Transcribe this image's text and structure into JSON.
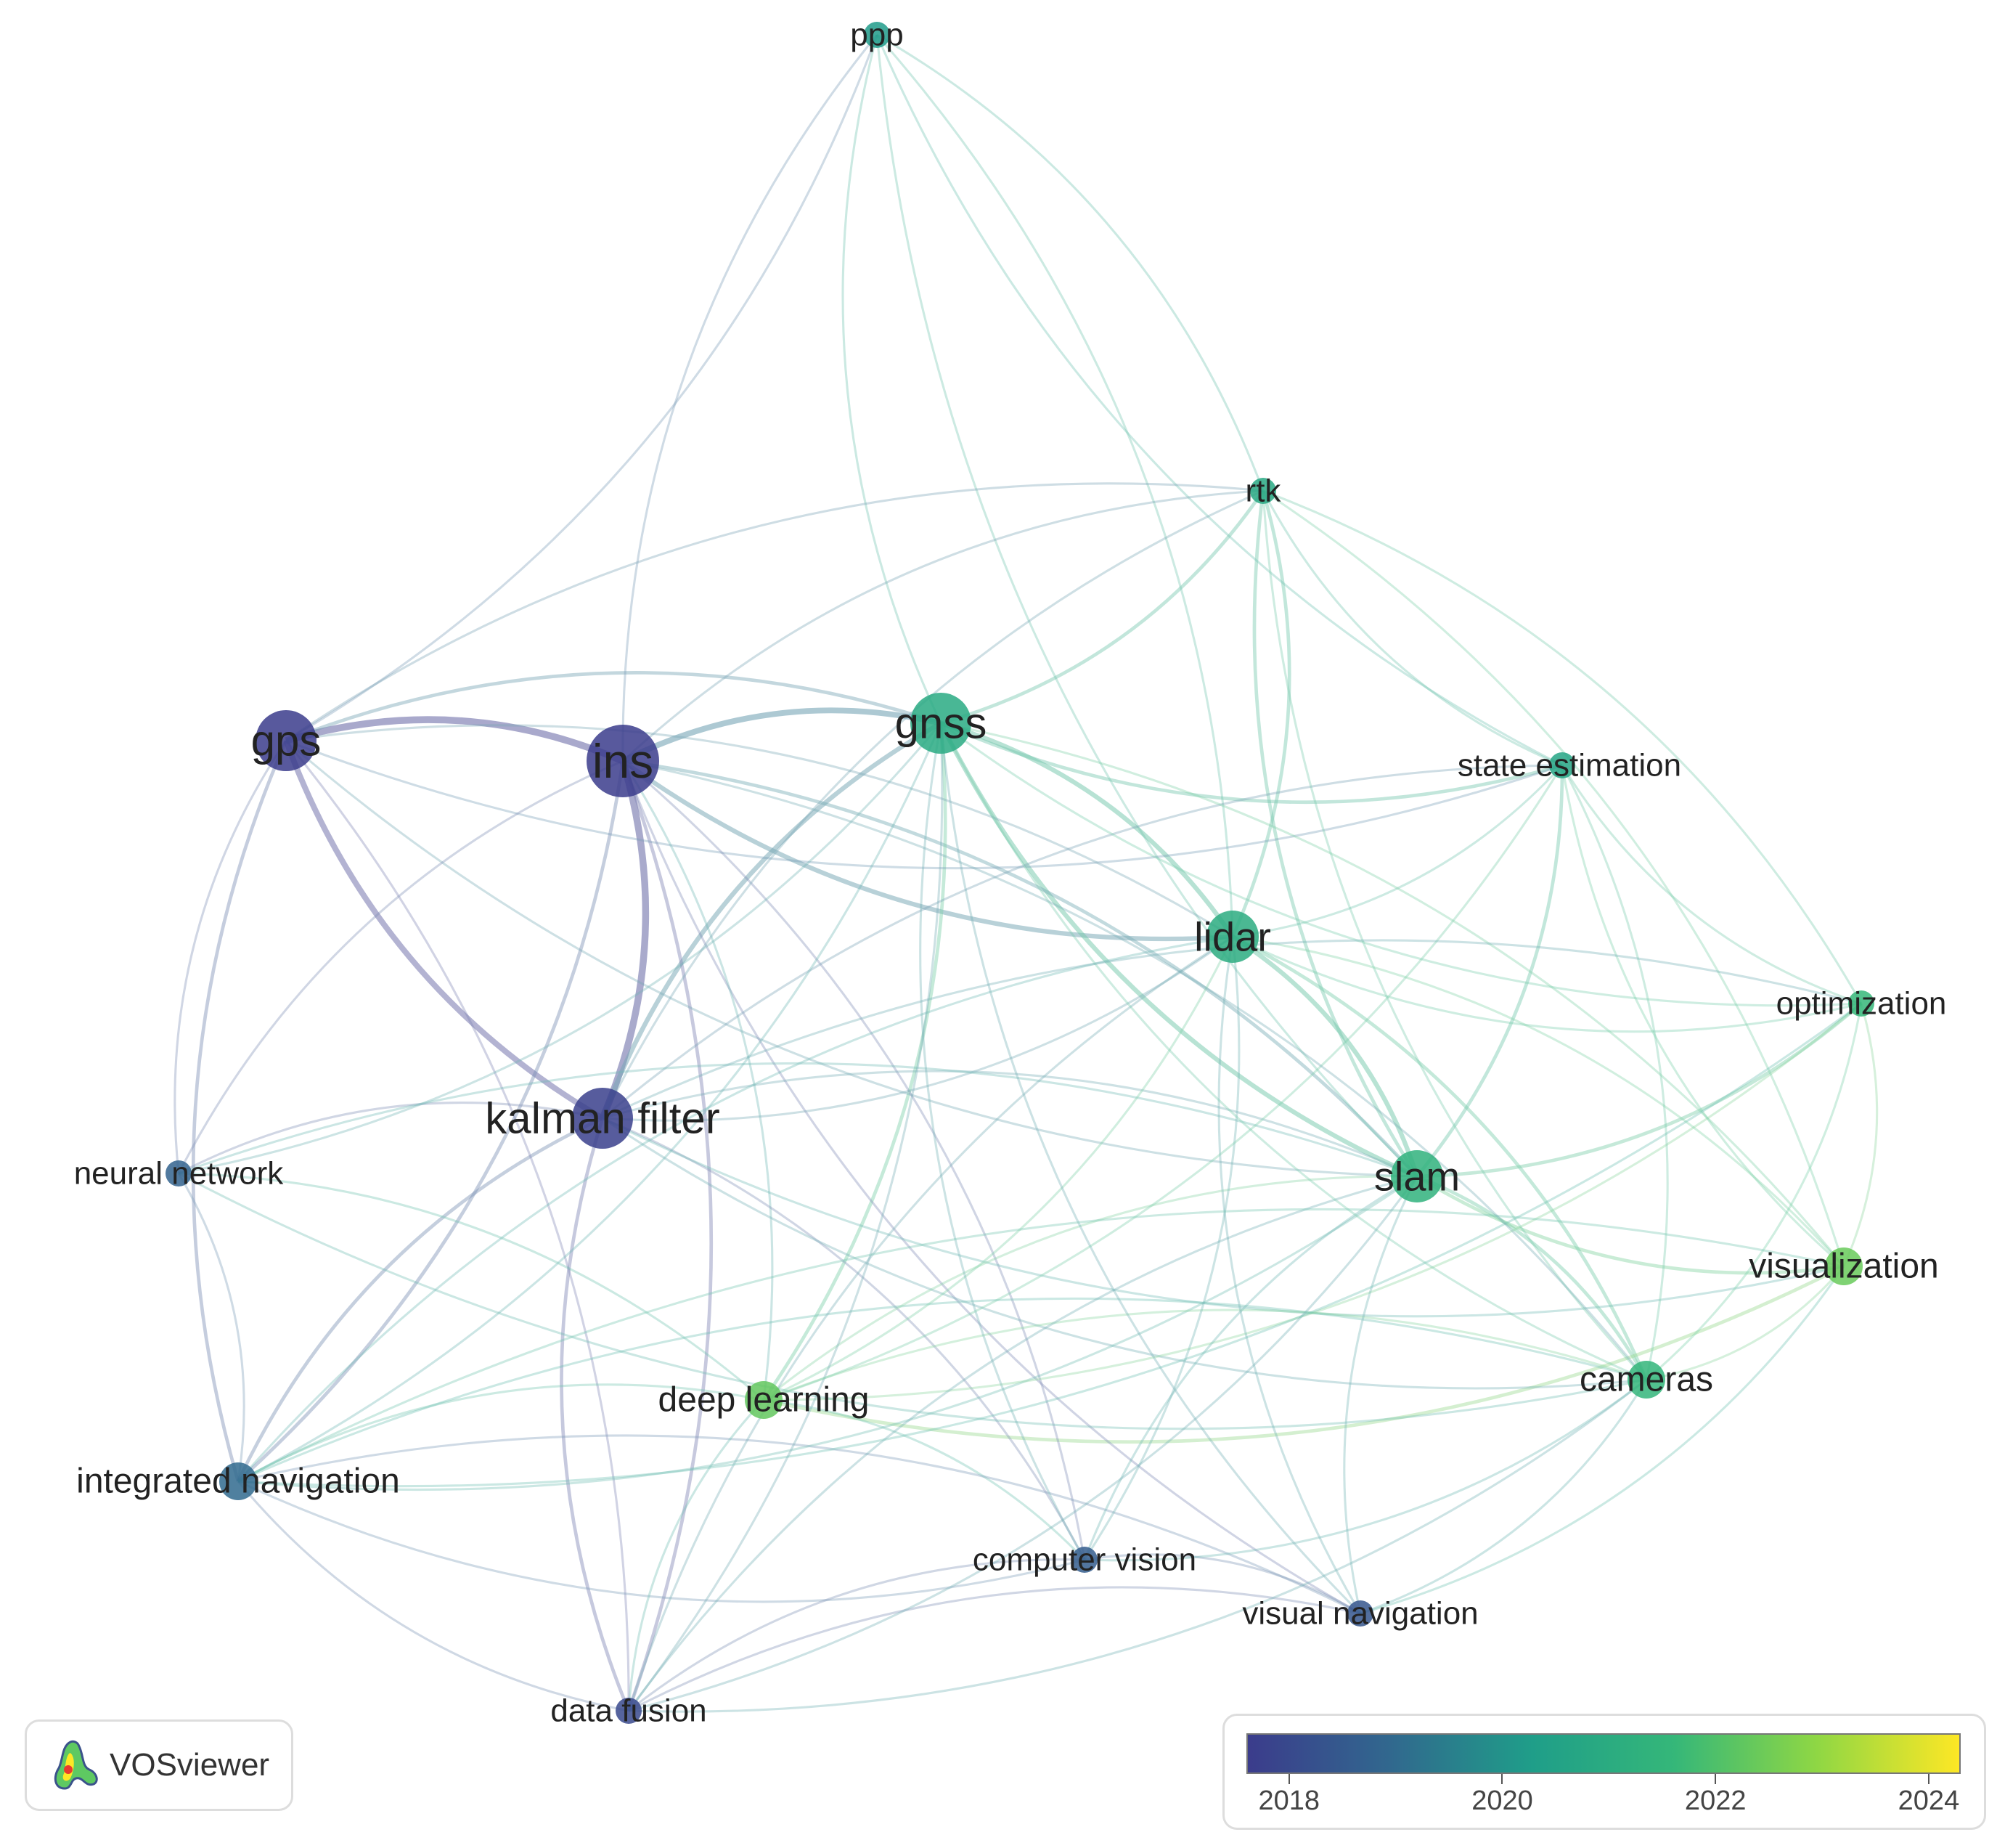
{
  "network": {
    "nodes": [
      {
        "id": "ppp",
        "label": "ppp",
        "weight": 1,
        "year": 2020.2
      },
      {
        "id": "rtk",
        "label": "rtk",
        "weight": 1,
        "year": 2020.8
      },
      {
        "id": "gps",
        "label": "gps",
        "weight": 4,
        "year": 2017.5
      },
      {
        "id": "ins",
        "label": "ins",
        "weight": 5,
        "year": 2017.6
      },
      {
        "id": "gnss",
        "label": "gnss",
        "weight": 4,
        "year": 2020.9
      },
      {
        "id": "state-estimation",
        "label": "state estimation",
        "weight": 1,
        "year": 2020.6
      },
      {
        "id": "lidar",
        "label": "lidar",
        "weight": 3,
        "year": 2021.0
      },
      {
        "id": "optimization",
        "label": "optimization",
        "weight": 1,
        "year": 2021.6
      },
      {
        "id": "neural-network",
        "label": "neural network",
        "weight": 1,
        "year": 2018.8
      },
      {
        "id": "kalman-filter",
        "label": "kalman filter",
        "weight": 4,
        "year": 2017.7
      },
      {
        "id": "slam",
        "label": "slam",
        "weight": 3,
        "year": 2021.3
      },
      {
        "id": "visualization",
        "label": "visualization",
        "weight": 2,
        "year": 2022.4
      },
      {
        "id": "deep-learning",
        "label": "deep learning",
        "weight": 2,
        "year": 2022.3
      },
      {
        "id": "cameras",
        "label": "cameras",
        "weight": 2,
        "year": 2021.5
      },
      {
        "id": "integrated-navigation",
        "label": "integrated navigation",
        "weight": 2,
        "year": 2019.0
      },
      {
        "id": "computer-vision",
        "label": "computer vision",
        "weight": 1,
        "year": 2018.6
      },
      {
        "id": "visual-navigation",
        "label": "visual navigation",
        "weight": 1,
        "year": 2018.4
      },
      {
        "id": "data-fusion",
        "label": "data fusion",
        "weight": 1,
        "year": 2018.0
      }
    ],
    "links": [
      [
        "ins",
        "gps",
        5
      ],
      [
        "ins",
        "kalman-filter",
        5
      ],
      [
        "gps",
        "kalman-filter",
        4
      ],
      [
        "ins",
        "gnss",
        4
      ],
      [
        "ins",
        "lidar",
        3
      ],
      [
        "gnss",
        "lidar",
        3
      ],
      [
        "gnss",
        "slam",
        3
      ],
      [
        "lidar",
        "slam",
        3
      ],
      [
        "gnss",
        "kalman-filter",
        3
      ],
      [
        "gps",
        "gnss",
        2
      ],
      [
        "gps",
        "integrated-navigation",
        2
      ],
      [
        "ins",
        "integrated-navigation",
        2
      ],
      [
        "kalman-filter",
        "integrated-navigation",
        2
      ],
      [
        "ins",
        "data-fusion",
        2
      ],
      [
        "kalman-filter",
        "data-fusion",
        2
      ],
      [
        "ins",
        "slam",
        2
      ],
      [
        "gnss",
        "rtk",
        2
      ],
      [
        "rtk",
        "lidar",
        2
      ],
      [
        "rtk",
        "slam",
        2
      ],
      [
        "slam",
        "cameras",
        2
      ],
      [
        "slam",
        "visualization",
        2
      ],
      [
        "lidar",
        "cameras",
        2
      ],
      [
        "gnss",
        "state-estimation",
        2
      ],
      [
        "state-estimation",
        "slam",
        2
      ],
      [
        "slam",
        "optimization",
        2
      ],
      [
        "gnss",
        "deep-learning",
        2
      ],
      [
        "deep-learning",
        "visualization",
        2
      ],
      [
        "deep-learning",
        "computer-vision",
        1
      ],
      [
        "cameras",
        "visualization",
        1
      ],
      [
        "optimization",
        "visualization",
        1
      ],
      [
        "gps",
        "ppp",
        1
      ],
      [
        "ins",
        "ppp",
        1
      ],
      [
        "ppp",
        "gnss",
        1
      ],
      [
        "ppp",
        "rtk",
        1
      ],
      [
        "ppp",
        "state-estimation",
        1
      ],
      [
        "ppp",
        "lidar",
        1
      ],
      [
        "ppp",
        "slam",
        1
      ],
      [
        "gps",
        "rtk",
        1
      ],
      [
        "gps",
        "state-estimation",
        1
      ],
      [
        "gps",
        "lidar",
        1
      ],
      [
        "gps",
        "neural-network",
        1
      ],
      [
        "gps",
        "data-fusion",
        1
      ],
      [
        "gps",
        "slam",
        1
      ],
      [
        "ins",
        "rtk",
        1
      ],
      [
        "ins",
        "neural-network",
        1
      ],
      [
        "ins",
        "computer-vision",
        1
      ],
      [
        "ins",
        "visual-navigation",
        1
      ],
      [
        "ins",
        "deep-learning",
        1
      ],
      [
        "kalman-filter",
        "neural-network",
        1
      ],
      [
        "kalman-filter",
        "slam",
        1
      ],
      [
        "kalman-filter",
        "lidar",
        1
      ],
      [
        "kalman-filter",
        "computer-vision",
        1
      ],
      [
        "kalman-filter",
        "cameras",
        1
      ],
      [
        "kalman-filter",
        "state-estimation",
        1
      ],
      [
        "kalman-filter",
        "visualization",
        1
      ],
      [
        "neural-network",
        "integrated-navigation",
        1
      ],
      [
        "neural-network",
        "gnss",
        1
      ],
      [
        "neural-network",
        "slam",
        1
      ],
      [
        "neural-network",
        "cameras",
        1
      ],
      [
        "neural-network",
        "deep-learning",
        1
      ],
      [
        "integrated-navigation",
        "gnss",
        1
      ],
      [
        "integrated-navigation",
        "lidar",
        1
      ],
      [
        "integrated-navigation",
        "data-fusion",
        1
      ],
      [
        "integrated-navigation",
        "deep-learning",
        1
      ],
      [
        "integrated-navigation",
        "computer-vision",
        1
      ],
      [
        "integrated-navigation",
        "visual-navigation",
        1
      ],
      [
        "integrated-navigation",
        "slam",
        1
      ],
      [
        "integrated-navigation",
        "cameras",
        1
      ],
      [
        "deep-learning",
        "data-fusion",
        1
      ],
      [
        "deep-learning",
        "slam",
        1
      ],
      [
        "deep-learning",
        "lidar",
        1
      ],
      [
        "deep-learning",
        "cameras",
        1
      ],
      [
        "deep-learning",
        "optimization",
        1
      ],
      [
        "computer-vision",
        "visual-navigation",
        1
      ],
      [
        "computer-vision",
        "cameras",
        1
      ],
      [
        "computer-vision",
        "slam",
        1
      ],
      [
        "computer-vision",
        "lidar",
        1
      ],
      [
        "computer-vision",
        "gnss",
        1
      ],
      [
        "computer-vision",
        "data-fusion",
        1
      ],
      [
        "visual-navigation",
        "slam",
        1
      ],
      [
        "visual-navigation",
        "cameras",
        1
      ],
      [
        "visual-navigation",
        "lidar",
        1
      ],
      [
        "visual-navigation",
        "data-fusion",
        1
      ],
      [
        "visual-navigation",
        "gnss",
        1
      ],
      [
        "data-fusion",
        "gnss",
        1
      ],
      [
        "data-fusion",
        "lidar",
        1
      ],
      [
        "data-fusion",
        "cameras",
        1
      ],
      [
        "data-fusion",
        "slam",
        1
      ],
      [
        "rtk",
        "state-estimation",
        1
      ],
      [
        "rtk",
        "optimization",
        1
      ],
      [
        "rtk",
        "cameras",
        1
      ],
      [
        "rtk",
        "visualization",
        1
      ],
      [
        "rtk",
        "kalman-filter",
        1
      ],
      [
        "state-estimation",
        "lidar",
        1
      ],
      [
        "state-estimation",
        "optimization",
        1
      ],
      [
        "state-estimation",
        "cameras",
        1
      ],
      [
        "state-estimation",
        "visualization",
        1
      ],
      [
        "state-estimation",
        "deep-learning",
        1
      ],
      [
        "lidar",
        "optimization",
        1
      ],
      [
        "lidar",
        "visualization",
        1
      ],
      [
        "gnss",
        "optimization",
        1
      ],
      [
        "gnss",
        "visualization",
        1
      ],
      [
        "gnss",
        "cameras",
        1
      ],
      [
        "optimization",
        "cameras",
        1
      ],
      [
        "optimization",
        "kalman-filter",
        1
      ],
      [
        "optimization",
        "integrated-navigation",
        1
      ],
      [
        "visualization",
        "integrated-navigation",
        1
      ],
      [
        "visualization",
        "visual-navigation",
        1
      ],
      [
        "cameras",
        "ins",
        1
      ],
      [
        "slam",
        "data-fusion",
        1
      ]
    ]
  },
  "legend": {
    "tick_labels": [
      "2018",
      "2020",
      "2022",
      "2024"
    ],
    "tick_values": [
      2018,
      2020,
      2022,
      2024
    ],
    "range": [
      2017.6,
      2024.3
    ],
    "gradient_colors": [
      "#3b3c8c",
      "#31688e",
      "#1f9e89",
      "#35b779",
      "#8fd744",
      "#fde725"
    ]
  },
  "logo": {
    "text": "VOSviewer"
  }
}
